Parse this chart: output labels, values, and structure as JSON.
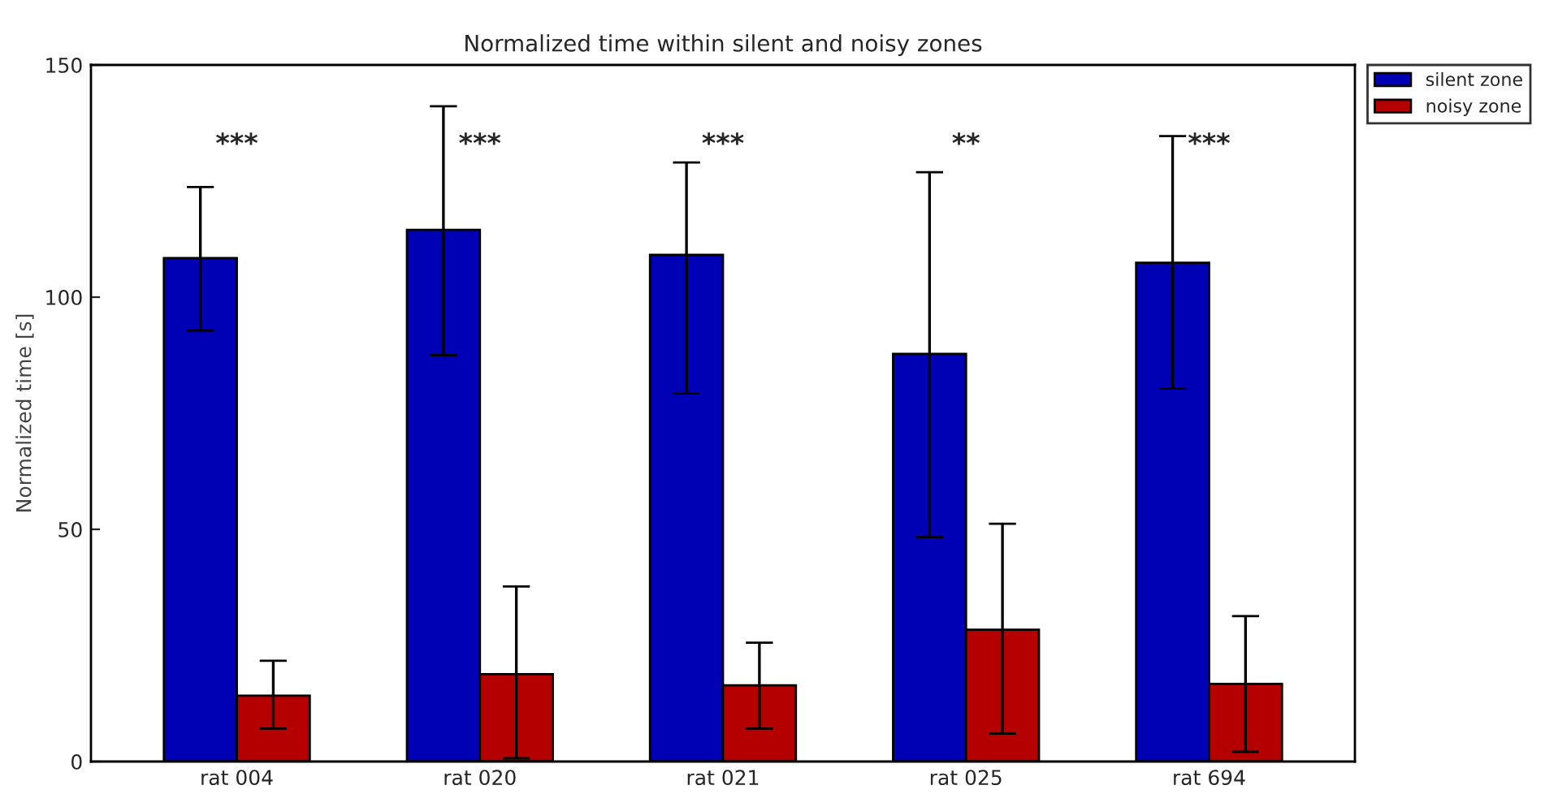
{
  "chart_data": {
    "type": "bar",
    "title": "Normalized time within silent and noisy zones",
    "ylabel": "Normalized time [s]",
    "categories": [
      "rat 004",
      "rat 020",
      "rat 021",
      "rat 025",
      "rat 694"
    ],
    "series": [
      {
        "name": "silent zone",
        "color": "#0000b4",
        "values": [
          108.4,
          114.5,
          109.1,
          87.8,
          107.4
        ],
        "errors": [
          [
            92.8,
            123.7
          ],
          [
            87.5,
            141.1
          ],
          [
            79.3,
            129.0
          ],
          [
            48.3,
            126.9
          ],
          [
            80.3,
            134.7
          ]
        ]
      },
      {
        "name": "noisy zone",
        "color": "#b40000",
        "values": [
          14.2,
          18.8,
          16.4,
          28.4,
          16.7
        ],
        "errors": [
          [
            7.1,
            21.7
          ],
          [
            0.7,
            37.7
          ],
          [
            7.1,
            25.6
          ],
          [
            6.0,
            51.2
          ],
          [
            2.1,
            31.3
          ]
        ]
      }
    ],
    "annotations": [
      "***",
      "***",
      "***",
      "**",
      "***"
    ],
    "ylim": [
      0,
      150
    ],
    "yticks": [
      0,
      50,
      100,
      150
    ],
    "grid": false,
    "legend": "top right"
  }
}
